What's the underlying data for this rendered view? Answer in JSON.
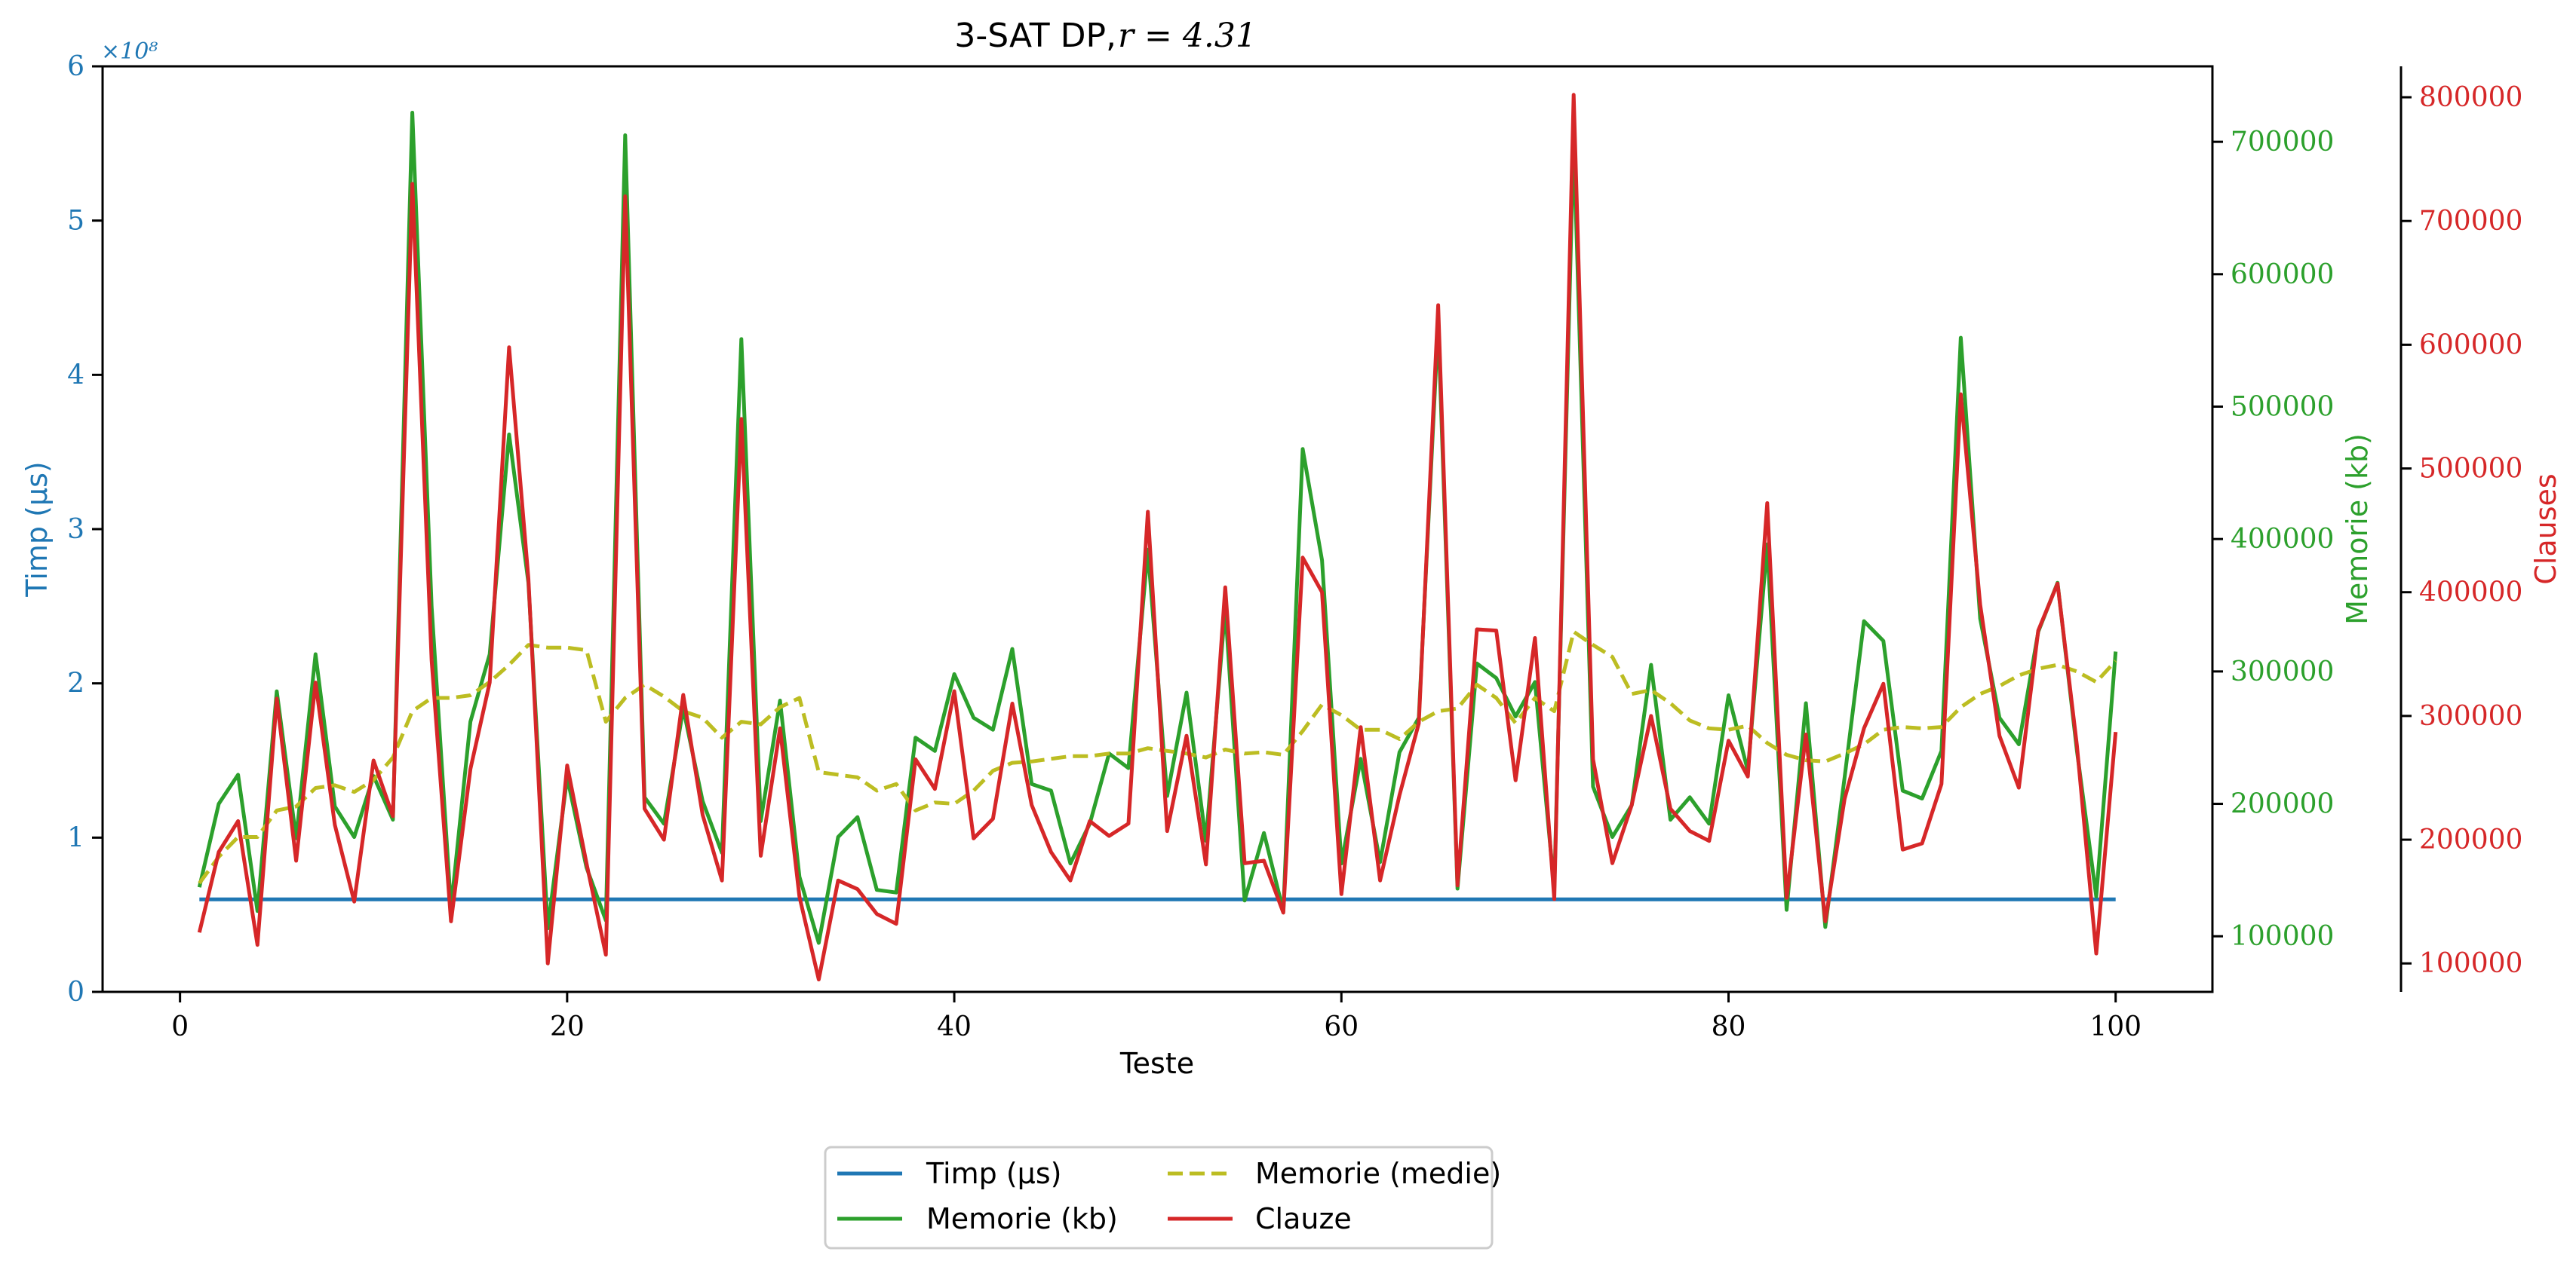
{
  "chart_data": {
    "type": "line",
    "title": "3-SAT DP, r = 4.31",
    "title_parts": {
      "main": "3-SAT DP, ",
      "math": "r = 4.31"
    },
    "xlabel": "Teste",
    "xlim": [
      -4,
      105
    ],
    "xticks": [
      0,
      20,
      40,
      60,
      80,
      100
    ],
    "colors": {
      "time": "#1f77b4",
      "memory": "#2ca02c",
      "mean": "#bcbd22",
      "clauses": "#d62728"
    },
    "axes": {
      "time": {
        "label": "Timp (μs)",
        "ylim": [
          0,
          600000000
        ],
        "ticks": [
          0,
          100000000,
          200000000,
          300000000,
          400000000,
          500000000,
          600000000
        ],
        "tick_labels": [
          "0",
          "1",
          "2",
          "3",
          "4",
          "5",
          "6"
        ],
        "offset_text": "×10⁸"
      },
      "memory": {
        "label": "Memorie (kb)",
        "ylim": [
          58000,
          757000
        ],
        "ticks": [
          100000,
          200000,
          300000,
          400000,
          500000,
          600000,
          700000
        ],
        "tick_labels": [
          "100000",
          "200000",
          "300000",
          "400000",
          "500000",
          "600000",
          "700000"
        ]
      },
      "clauses": {
        "label": "Clauses",
        "ylim": [
          77000,
          825000
        ],
        "ticks": [
          100000,
          200000,
          300000,
          400000,
          500000,
          600000,
          700000,
          800000
        ],
        "tick_labels": [
          "100000",
          "200000",
          "300000",
          "400000",
          "500000",
          "600000",
          "700000",
          "800000"
        ]
      }
    },
    "x": [
      1,
      2,
      3,
      4,
      5,
      6,
      7,
      8,
      9,
      10,
      11,
      12,
      13,
      14,
      15,
      16,
      17,
      18,
      19,
      20,
      21,
      22,
      23,
      24,
      25,
      26,
      27,
      28,
      29,
      30,
      31,
      32,
      33,
      34,
      35,
      36,
      37,
      38,
      39,
      40,
      41,
      42,
      43,
      44,
      45,
      46,
      47,
      48,
      49,
      50,
      51,
      52,
      53,
      54,
      55,
      56,
      57,
      58,
      59,
      60,
      61,
      62,
      63,
      64,
      65,
      66,
      67,
      68,
      69,
      70,
      71,
      72,
      73,
      74,
      75,
      76,
      77,
      78,
      79,
      80,
      81,
      82,
      83,
      84,
      85,
      86,
      87,
      88,
      89,
      90,
      91,
      92,
      93,
      94,
      95,
      96,
      97,
      98,
      99,
      100
    ],
    "series": [
      {
        "name": "Timp (μs)",
        "axis": "time",
        "style": "solid",
        "values": [
          60000000,
          60000000,
          60000000,
          60000000,
          60000000,
          60000000,
          60000000,
          60000000,
          60000000,
          60000000,
          60000000,
          60000000,
          60000000,
          60000000,
          60000000,
          60000000,
          60000000,
          60000000,
          60000000,
          60000000,
          60000000,
          60000000,
          60000000,
          60000000,
          60000000,
          60000000,
          60000000,
          60000000,
          60000000,
          60000000,
          60000000,
          60000000,
          60000000,
          60000000,
          60000000,
          60000000,
          60000000,
          60000000,
          60000000,
          60000000,
          60000000,
          60000000,
          60000000,
          60000000,
          60000000,
          60000000,
          60000000,
          60000000,
          60000000,
          60000000,
          60000000,
          60000000,
          60000000,
          60000000,
          60000000,
          60000000,
          60000000,
          60000000,
          60000000,
          60000000,
          60000000,
          60000000,
          60000000,
          60000000,
          60000000,
          60000000,
          60000000,
          60000000,
          60000000,
          60000000,
          60000000,
          60000000,
          60000000,
          60000000,
          60000000,
          60000000,
          60000000,
          60000000,
          60000000,
          60000000,
          60000000,
          60000000,
          60000000,
          60000000,
          60000000,
          60000000,
          60000000,
          60000000,
          60000000,
          60000000,
          60000000,
          60000000,
          60000000,
          60000000,
          60000000,
          60000000,
          60000000,
          60000000,
          60000000,
          60000000
        ]
      },
      {
        "name": "Memorie (kb)",
        "axis": "memory",
        "style": "solid",
        "values": [
          137000,
          200000,
          222000,
          119000,
          285000,
          174000,
          313000,
          198000,
          175000,
          221000,
          188000,
          722000,
          349000,
          121000,
          262000,
          313000,
          479000,
          367000,
          106000,
          220000,
          152000,
          112000,
          705000,
          205000,
          185000,
          272000,
          202000,
          163000,
          551000,
          187000,
          278000,
          145000,
          95000,
          175000,
          190000,
          135000,
          133000,
          250000,
          240000,
          298000,
          265000,
          256000,
          317000,
          215000,
          210000,
          155000,
          185000,
          238000,
          227000,
          392000,
          206000,
          284000,
          172000,
          348000,
          127000,
          178000,
          119000,
          468000,
          384000,
          155000,
          234000,
          156000,
          239000,
          265000,
          563000,
          136000,
          306000,
          295000,
          266000,
          292000,
          136000,
          704000,
          213000,
          175000,
          199000,
          305000,
          188000,
          205000,
          185000,
          282000,
          225000,
          396000,
          120000,
          276000,
          107000,
          220000,
          338000,
          323000,
          210000,
          204000,
          240000,
          552000,
          340000,
          265000,
          245000,
          330000,
          367000,
          240000,
          130000,
          315000
        ]
      },
      {
        "name": "Memorie (medie)",
        "axis": "memory",
        "style": "dashed",
        "values": [
          140000,
          160000,
          175000,
          175000,
          195000,
          198000,
          212000,
          214000,
          209000,
          218000,
          235000,
          270000,
          280000,
          280000,
          282000,
          292000,
          305000,
          320000,
          318000,
          318000,
          316000,
          262000,
          280000,
          290000,
          281000,
          270000,
          265000,
          250000,
          262000,
          260000,
          273000,
          280000,
          224000,
          222000,
          220000,
          210000,
          215000,
          195000,
          201000,
          200000,
          210000,
          225000,
          231000,
          232000,
          234000,
          236000,
          236000,
          238000,
          238000,
          242000,
          240000,
          238000,
          235000,
          241000,
          238000,
          239000,
          237000,
          255000,
          275000,
          267000,
          256000,
          256000,
          249000,
          262000,
          270000,
          272000,
          290000,
          280000,
          261000,
          280000,
          270000,
          330000,
          320000,
          311000,
          283000,
          286000,
          276000,
          263000,
          257000,
          256000,
          259000,
          246000,
          237000,
          233000,
          232000,
          238000,
          245000,
          256000,
          258000,
          257000,
          258000,
          273000,
          283000,
          289000,
          297000,
          302000,
          305000,
          300000,
          292000,
          308000
        ]
      },
      {
        "name": "Clauze",
        "axis": "clauses",
        "style": "solid",
        "values": [
          125000,
          190000,
          215000,
          115000,
          314000,
          183000,
          327000,
          212000,
          150000,
          264000,
          219000,
          730000,
          345000,
          134000,
          257000,
          327000,
          598000,
          411000,
          100000,
          260000,
          181000,
          107000,
          720000,
          225000,
          200000,
          317000,
          220000,
          167000,
          540000,
          187000,
          290000,
          154000,
          87000,
          167000,
          160000,
          140000,
          132000,
          265000,
          241000,
          320000,
          201000,
          217000,
          310000,
          228000,
          190000,
          167000,
          215000,
          203000,
          213000,
          465000,
          207000,
          284000,
          180000,
          404000,
          181000,
          183000,
          141000,
          428000,
          400000,
          156000,
          291000,
          167000,
          236000,
          294000,
          632000,
          163000,
          370000,
          369000,
          248000,
          363000,
          152000,
          802000,
          265000,
          181000,
          228000,
          300000,
          225000,
          207000,
          199000,
          280000,
          251000,
          472000,
          153000,
          285000,
          134000,
          233000,
          290000,
          326000,
          192000,
          197000,
          245000,
          560000,
          390000,
          284000,
          242000,
          369000,
          407000,
          276000,
          108000,
          287000
        ]
      }
    ],
    "legend": {
      "position": "bottom-center",
      "columns": 2,
      "entries": [
        "Timp (μs)",
        "Memorie (medie)",
        "Memorie (kb)",
        "Clauze"
      ]
    }
  }
}
